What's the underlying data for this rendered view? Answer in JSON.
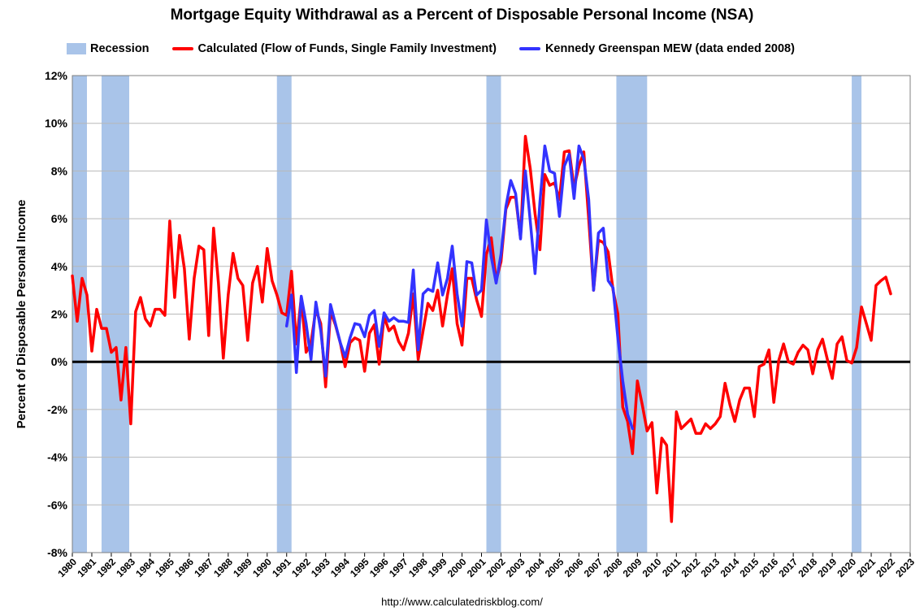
{
  "chart_data": {
    "type": "line",
    "title": "Mortgage Equity Withdrawal as a Percent of Disposable Personal Income (NSA)",
    "xlabel": "",
    "ylabel": "Percent of Disposable Personal Income",
    "xlim": [
      1980,
      2023
    ],
    "ylim": [
      -8,
      12
    ],
    "y_ticks": [
      -8,
      -6,
      -4,
      -2,
      0,
      2,
      4,
      6,
      8,
      10,
      12
    ],
    "y_tick_labels": [
      "-8%",
      "-6%",
      "-4%",
      "-2%",
      "0%",
      "2%",
      "4%",
      "6%",
      "8%",
      "10%",
      "12%"
    ],
    "x_tick_labels": [
      "1980",
      "1981",
      "1982",
      "1983",
      "1984",
      "1985",
      "1986",
      "1987",
      "1988",
      "1989",
      "1990",
      "1991",
      "1992",
      "1993",
      "1994",
      "1995",
      "1996",
      "1997",
      "1998",
      "1999",
      "2000",
      "2001",
      "2002",
      "2003",
      "2004",
      "2005",
      "2006",
      "2007",
      "2008",
      "2009",
      "2010",
      "2011",
      "2012",
      "2013",
      "2014",
      "2015",
      "2016",
      "2017",
      "2018",
      "2019",
      "2020",
      "2021",
      "2022",
      "2023"
    ],
    "grid": true,
    "legend_position": "top",
    "recession_label": "Recession",
    "recession_color": "#a9c4e9",
    "recessions": [
      [
        1980.0,
        1980.75
      ],
      [
        1981.5,
        1982.92
      ],
      [
        1990.5,
        1991.25
      ],
      [
        2001.25,
        2002.0
      ],
      [
        2007.92,
        2009.5
      ],
      [
        2020.0,
        2020.5
      ]
    ],
    "series": [
      {
        "name": "Calculated (Flow of Funds, Single Family Investment)",
        "color": "#ff0000",
        "x": [
          1980.0,
          1980.25,
          1980.5,
          1980.75,
          1981.0,
          1981.25,
          1981.5,
          1981.75,
          1982.0,
          1982.25,
          1982.5,
          1982.75,
          1983.0,
          1983.25,
          1983.5,
          1983.75,
          1984.0,
          1984.25,
          1984.5,
          1984.75,
          1985.0,
          1985.25,
          1985.5,
          1985.75,
          1986.0,
          1986.25,
          1986.5,
          1986.75,
          1987.0,
          1987.25,
          1987.5,
          1987.75,
          1988.0,
          1988.25,
          1988.5,
          1988.75,
          1989.0,
          1989.25,
          1989.5,
          1989.75,
          1990.0,
          1990.25,
          1990.5,
          1990.75,
          1991.0,
          1991.25,
          1991.5,
          1991.75,
          1992.0,
          1992.25,
          1992.5,
          1992.75,
          1993.0,
          1993.25,
          1993.5,
          1993.75,
          1994.0,
          1994.25,
          1994.5,
          1994.75,
          1995.0,
          1995.25,
          1995.5,
          1995.75,
          1996.0,
          1996.25,
          1996.5,
          1996.75,
          1997.0,
          1997.25,
          1997.5,
          1997.75,
          1998.0,
          1998.25,
          1998.5,
          1998.75,
          1999.0,
          1999.25,
          1999.5,
          1999.75,
          2000.0,
          2000.25,
          2000.5,
          2000.75,
          2001.0,
          2001.25,
          2001.5,
          2001.75,
          2002.0,
          2002.25,
          2002.5,
          2002.75,
          2003.0,
          2003.25,
          2003.5,
          2003.75,
          2004.0,
          2004.25,
          2004.5,
          2004.75,
          2005.0,
          2005.25,
          2005.5,
          2005.75,
          2006.0,
          2006.25,
          2006.5,
          2006.75,
          2007.0,
          2007.25,
          2007.5,
          2007.75,
          2008.0,
          2008.25,
          2008.5,
          2008.75,
          2009.0,
          2009.25,
          2009.5,
          2009.75,
          2010.0,
          2010.25,
          2010.5,
          2010.75,
          2011.0,
          2011.25,
          2011.5,
          2011.75,
          2012.0,
          2012.25,
          2012.5,
          2012.75,
          2013.0,
          2013.25,
          2013.5,
          2013.75,
          2014.0,
          2014.25,
          2014.5,
          2014.75,
          2015.0,
          2015.25,
          2015.5,
          2015.75,
          2016.0,
          2016.25,
          2016.5,
          2016.75,
          2017.0,
          2017.25,
          2017.5,
          2017.75,
          2018.0,
          2018.25,
          2018.5,
          2018.75,
          2019.0,
          2019.25,
          2019.5,
          2019.75,
          2020.0,
          2020.25,
          2020.5,
          2020.75,
          2021.0,
          2021.25,
          2021.5,
          2021.75,
          2022.0
        ],
        "values": [
          3.6,
          1.7,
          3.5,
          2.8,
          0.45,
          2.2,
          1.4,
          1.4,
          0.4,
          0.6,
          -1.6,
          0.6,
          -2.6,
          2.1,
          2.7,
          1.8,
          1.5,
          2.2,
          2.2,
          1.95,
          5.9,
          2.7,
          5.3,
          3.9,
          0.95,
          3.5,
          4.85,
          4.7,
          1.1,
          5.6,
          3.3,
          0.15,
          2.8,
          4.55,
          3.5,
          3.2,
          0.9,
          3.3,
          4.0,
          2.5,
          4.75,
          3.4,
          2.8,
          2.05,
          1.95,
          3.8,
          0.75,
          2.7,
          0.4,
          0.8,
          2.2,
          1.6,
          -1.05,
          2.1,
          1.55,
          0.8,
          -0.2,
          0.8,
          1.0,
          0.9,
          -0.4,
          1.2,
          1.55,
          -0.1,
          1.9,
          1.3,
          1.5,
          0.85,
          0.5,
          1.2,
          2.85,
          0.1,
          1.3,
          2.45,
          2.15,
          3.0,
          1.5,
          2.8,
          3.9,
          1.6,
          0.7,
          3.5,
          3.5,
          2.6,
          1.9,
          4.5,
          5.2,
          3.4,
          4.2,
          6.4,
          6.9,
          6.9,
          5.2,
          9.45,
          8.1,
          6.2,
          4.7,
          7.85,
          7.4,
          7.5,
          6.8,
          8.8,
          8.85,
          7.3,
          8.2,
          8.8,
          6.0,
          3.0,
          5.1,
          5.0,
          4.6,
          3.0,
          2.0,
          -1.9,
          -2.5,
          -3.85,
          -0.8,
          -1.8,
          -2.9,
          -2.55,
          -5.5,
          -3.2,
          -3.5,
          -6.7,
          -2.1,
          -2.8,
          -2.6,
          -2.4,
          -3.0,
          -3.0,
          -2.6,
          -2.8,
          -2.6,
          -2.3,
          -0.9,
          -1.8,
          -2.5,
          -1.6,
          -1.1,
          -1.1,
          -2.3,
          -0.2,
          -0.1,
          0.5,
          -1.7,
          0.05,
          0.75,
          0.0,
          -0.1,
          0.4,
          0.7,
          0.5,
          -0.5,
          0.5,
          0.95,
          0.1,
          -0.7,
          0.75,
          1.05,
          0.05,
          -0.05,
          0.6,
          2.3,
          1.6,
          0.9,
          3.2,
          3.4,
          3.55,
          2.85
        ]
      },
      {
        "name": "Kennedy Greenspan MEW (data ended 2008)",
        "color": "#3333ff",
        "x": [
          1991.0,
          1991.25,
          1991.5,
          1991.75,
          1992.0,
          1992.25,
          1992.5,
          1992.75,
          1993.0,
          1993.25,
          1993.5,
          1993.75,
          1994.0,
          1994.25,
          1994.5,
          1994.75,
          1995.0,
          1995.25,
          1995.5,
          1995.75,
          1996.0,
          1996.25,
          1996.5,
          1996.75,
          1997.0,
          1997.25,
          1997.5,
          1997.75,
          1998.0,
          1998.25,
          1998.5,
          1998.75,
          1999.0,
          1999.25,
          1999.5,
          1999.75,
          2000.0,
          2000.25,
          2000.5,
          2000.75,
          2001.0,
          2001.25,
          2001.5,
          2001.75,
          2002.0,
          2002.25,
          2002.5,
          2002.75,
          2003.0,
          2003.25,
          2003.5,
          2003.75,
          2004.0,
          2004.25,
          2004.5,
          2004.75,
          2005.0,
          2005.25,
          2005.5,
          2005.75,
          2006.0,
          2006.25,
          2006.5,
          2006.75,
          2007.0,
          2007.25,
          2007.5,
          2007.75,
          2008.0,
          2008.25,
          2008.5,
          2008.75
        ],
        "values": [
          1.5,
          2.8,
          -0.45,
          2.75,
          1.6,
          0.1,
          2.5,
          1.3,
          -0.6,
          2.4,
          1.6,
          0.8,
          0.2,
          1.0,
          1.6,
          1.55,
          1.05,
          1.95,
          2.15,
          0.65,
          2.05,
          1.7,
          1.85,
          1.7,
          1.7,
          1.65,
          3.85,
          0.5,
          2.85,
          3.05,
          2.95,
          4.15,
          2.8,
          3.5,
          4.85,
          2.85,
          1.5,
          4.2,
          4.15,
          2.8,
          3.0,
          5.95,
          4.4,
          3.3,
          4.5,
          6.5,
          7.6,
          7.05,
          5.15,
          8.0,
          5.9,
          3.7,
          6.7,
          9.05,
          8.0,
          7.9,
          6.1,
          8.2,
          8.7,
          6.85,
          9.05,
          8.5,
          6.8,
          3.0,
          5.4,
          5.6,
          3.4,
          3.1,
          1.0,
          -0.8,
          -2.2,
          -2.8
        ]
      }
    ]
  },
  "source_url": "http://www.calculatedriskblog.com/"
}
